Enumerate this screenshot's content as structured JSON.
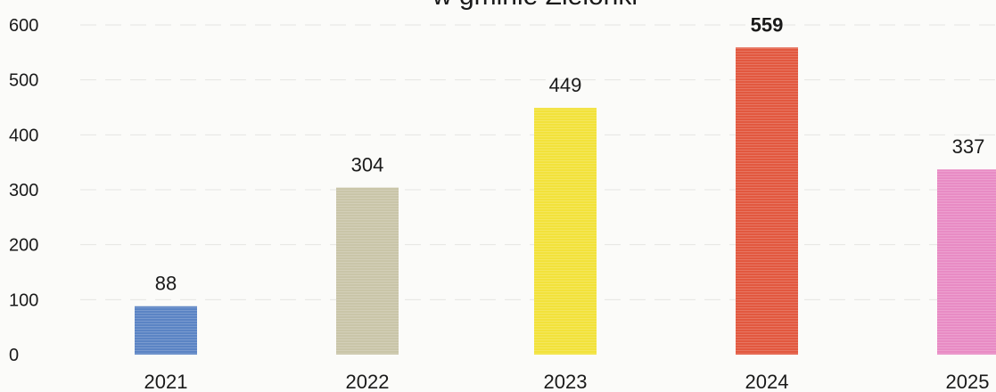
{
  "chart_data": {
    "type": "bar",
    "title": "w gminie Zielonki",
    "categories": [
      "2021",
      "2022",
      "2023",
      "2024",
      "2025"
    ],
    "values": [
      88,
      304,
      449,
      559,
      337
    ],
    "bar_colors": [
      "#5b84c4",
      "#c9c5a8",
      "#f2e23a",
      "#e2583f",
      "#e88bc4"
    ],
    "ylim": [
      0,
      600
    ],
    "yticks": [
      0,
      100,
      200,
      300,
      400,
      500,
      600
    ],
    "xlabel": "",
    "ylabel": "",
    "grid": true,
    "legend": null,
    "data_labels": [
      "88",
      "304",
      "449",
      "559",
      "337"
    ],
    "bold_label_index": 3
  }
}
